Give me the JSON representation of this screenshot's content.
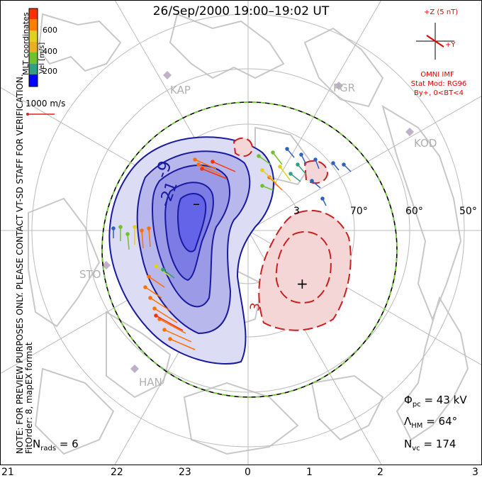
{
  "title": "26/Sep/2000  19:00–19:02  UT",
  "side_note": {
    "line1": "NOTE: FOR PREVIEW PURPOSES ONLY. PLEASE CONTACT VT-SD STAFF FOR VERIFICATION.",
    "line2": "FitOrder: 8, mapEX format"
  },
  "colorbar": {
    "label": "Vel [m/s]",
    "coordinates": "MLT coordinates",
    "ticks": [
      "600",
      "400",
      "200"
    ],
    "colors": [
      "#0000ff",
      "#3060c0",
      "#30a080",
      "#70c030",
      "#e0d020",
      "#ff8000",
      "#ff3000"
    ]
  },
  "velocity_scale": {
    "label": "1000 m/s",
    "color": "#e02020"
  },
  "imf": {
    "bz_label": "+Z (5 nT)",
    "by_label": "+Y",
    "source": "OMNI IMF",
    "model": "Stat Mod: RG96",
    "condition": "By+, 0<BT<4",
    "color": "#e00000"
  },
  "stations": [
    "KAP",
    "PGR",
    "KOD",
    "STO",
    "HAN"
  ],
  "latitude_labels": [
    "70°",
    "60°",
    "50°"
  ],
  "contour_labels": [
    "-9",
    "-21",
    "-3",
    "3",
    "3"
  ],
  "extrema_markers": {
    "min": "–",
    "max": "+"
  },
  "stats": {
    "phi_pc": {
      "symbol": "Φ",
      "sub": "pc",
      "value": "= 43 kV"
    },
    "lambda_hm": {
      "symbol": "Λ",
      "sub": "HM",
      "value": "= 64°"
    },
    "n_vc": {
      "symbol": "N",
      "sub": "vc",
      "value": "= 174"
    },
    "n_rads": {
      "symbol": "N",
      "sub": "rads",
      "value": "= 6"
    }
  },
  "mlt_hours": [
    "21",
    "22",
    "23",
    "0",
    "1",
    "2",
    "3"
  ],
  "colors": {
    "negative_contour": "#1a1aa0",
    "negative_fill": "#5a5aee",
    "positive_contour": "#cc2020",
    "positive_fill": "#f0b0b0",
    "hmb": "#70d030",
    "grid": "#bbbbbb",
    "coast": "#c8c8c8"
  }
}
